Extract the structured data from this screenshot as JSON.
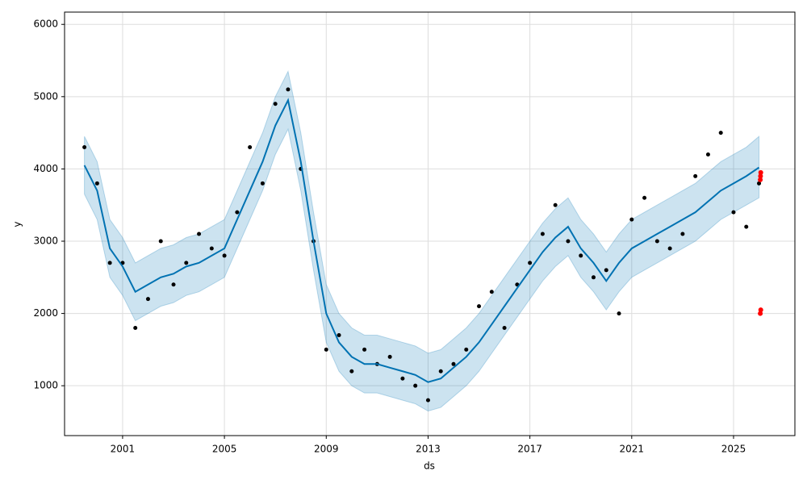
{
  "chart_data": {
    "type": "forecast",
    "x_label": "ds",
    "y_label": "y",
    "xlim": [
      1998.72,
      2027.41
    ],
    "xticks": [
      2001,
      2005,
      2009,
      2013,
      2017,
      2021,
      2025
    ],
    "ylim": [
      310,
      6170
    ],
    "yticks": [
      1000,
      2000,
      3000,
      4000,
      5000,
      6000
    ],
    "grid": true,
    "line_color": "#0072B2",
    "band_color": "#0072B2",
    "point_color": "#000000",
    "x": [
      1999.5,
      2000.0,
      2000.5,
      2001.0,
      2001.5,
      2002.0,
      2002.5,
      2003.0,
      2003.5,
      2004.0,
      2004.5,
      2005.0,
      2005.5,
      2006.0,
      2006.5,
      2007.0,
      2007.5,
      2008.0,
      2008.5,
      2009.0,
      2009.5,
      2010.0,
      2010.5,
      2011.0,
      2011.5,
      2012.0,
      2012.5,
      2013.0,
      2013.5,
      2014.0,
      2014.5,
      2015.0,
      2015.5,
      2016.0,
      2016.5,
      2017.0,
      2017.5,
      2018.0,
      2018.5,
      2019.0,
      2019.5,
      2020.0,
      2020.5,
      2021.0,
      2021.5,
      2022.0,
      2022.5,
      2023.0,
      2023.5,
      2024.0,
      2024.5,
      2025.0,
      2025.5,
      2026.0
    ],
    "yhat": [
      4050,
      3700,
      2900,
      2650,
      2300,
      2400,
      2500,
      2550,
      2650,
      2700,
      2800,
      2900,
      3300,
      3700,
      4100,
      4600,
      4950,
      4100,
      3000,
      2000,
      1600,
      1400,
      1300,
      1300,
      1250,
      1200,
      1150,
      1050,
      1100,
      1250,
      1400,
      1600,
      1850,
      2100,
      2350,
      2600,
      2850,
      3050,
      3200,
      2900,
      2700,
      2450,
      2700,
      2900,
      3000,
      3100,
      3200,
      3300,
      3400,
      3550,
      3700,
      3800,
      3900,
      4020
    ],
    "yhat_lower": [
      3650,
      3300,
      2500,
      2250,
      1900,
      2000,
      2100,
      2150,
      2250,
      2300,
      2400,
      2500,
      2900,
      3300,
      3700,
      4200,
      4550,
      3700,
      2600,
      1600,
      1200,
      1000,
      900,
      900,
      850,
      800,
      750,
      650,
      700,
      850,
      1000,
      1200,
      1450,
      1700,
      1950,
      2200,
      2450,
      2650,
      2800,
      2500,
      2300,
      2050,
      2300,
      2500,
      2600,
      2700,
      2800,
      2900,
      3000,
      3150,
      3300,
      3400,
      3500,
      3600
    ],
    "yhat_upper": [
      4450,
      4100,
      3300,
      3050,
      2700,
      2800,
      2900,
      2950,
      3050,
      3100,
      3200,
      3300,
      3700,
      4100,
      4500,
      5000,
      5350,
      4500,
      3400,
      2400,
      2000,
      1800,
      1700,
      1700,
      1650,
      1600,
      1550,
      1450,
      1500,
      1650,
      1800,
      2000,
      2250,
      2500,
      2750,
      3000,
      3250,
      3450,
      3600,
      3300,
      3100,
      2850,
      3100,
      3300,
      3400,
      3500,
      3600,
      3700,
      3800,
      3950,
      4100,
      4200,
      4300,
      4450
    ],
    "observed": [
      4300,
      3800,
      2700,
      2700,
      1800,
      2200,
      3000,
      2400,
      2700,
      3100,
      2900,
      2800,
      3400,
      4300,
      3800,
      4900,
      5100,
      4000,
      3000,
      1500,
      1700,
      1200,
      1500,
      1300,
      1400,
      1100,
      1000,
      800,
      1200,
      1300,
      1500,
      2100,
      2300,
      1800,
      2400,
      2700,
      3100,
      3500,
      3000,
      2800,
      2500,
      2600,
      2000,
      3300,
      3600,
      3000,
      2900,
      3100,
      3900,
      4200,
      4500,
      3400,
      3200,
      3800
    ],
    "outliers": {
      "color": "#ff0000",
      "x": [
        2026.05,
        2026.06,
        2026.07,
        2026.05,
        2026.07
      ],
      "values": [
        3850,
        3900,
        3950,
        2000,
        2050
      ]
    }
  }
}
